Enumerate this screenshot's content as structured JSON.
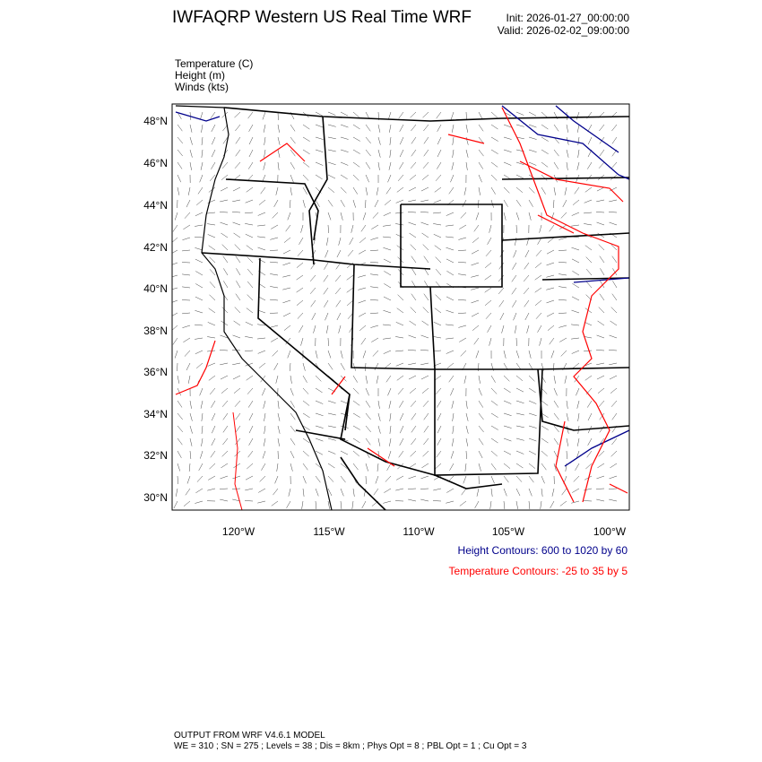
{
  "header": {
    "title": "IWFAQRP Western US Real Time WRF",
    "init": "Init: 2026-01-27_00:00:00",
    "valid": "Valid: 2026-02-02_09:00:00"
  },
  "fields": [
    "Temperature   (C)",
    "Height   (m)",
    "Winds   (kts)"
  ],
  "map": {
    "lat_labels": [
      "48°N",
      "46°N",
      "44°N",
      "42°N",
      "40°N",
      "38°N",
      "36°N",
      "34°N",
      "32°N",
      "30°N"
    ],
    "lon_labels": [
      "120°W",
      "115°W",
      "110°W",
      "105°W",
      "100°W"
    ],
    "colors": {
      "height_contour": "#00008b",
      "temperature_contour": "#ff0000",
      "borders": "#000000"
    }
  },
  "legend": {
    "height": "Height Contours: 600 to 1020 by 60",
    "temperature": "Temperature Contours: -25 to 35 by 5"
  },
  "footer": {
    "line1": "OUTPUT FROM WRF V4.6.1 MODEL",
    "line2": "WE = 310 ; SN = 275 ; Levels = 38 ; Dis = 8km ; Phys Opt = 8 ; PBL Opt = 1 ; Cu Opt = 3"
  }
}
